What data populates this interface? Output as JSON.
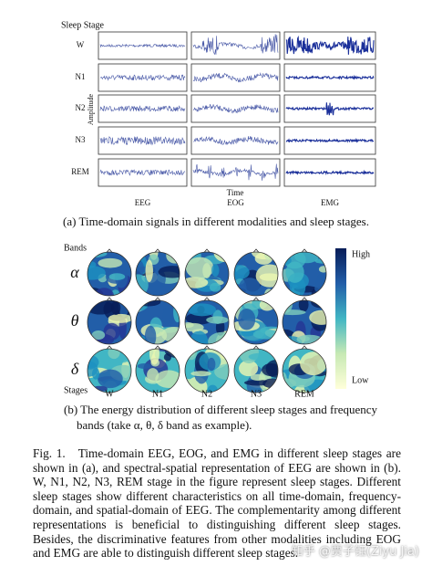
{
  "panel_a": {
    "title": "Sleep Stage",
    "stages": [
      "W",
      "N1",
      "N2",
      "N3",
      "REM"
    ],
    "y_label": "Amplitude",
    "x_label": "Time",
    "modalities": [
      "EEG",
      "EOG",
      "EMG"
    ],
    "caption": "(a) Time-domain signals in different modalities and sleep stages."
  },
  "panel_b": {
    "bands_label": "Bands",
    "bands": [
      "α",
      "θ",
      "δ"
    ],
    "stages_label": "Stages",
    "stages": [
      "W",
      "N1",
      "N2",
      "N3",
      "REM"
    ],
    "colorbar": {
      "high": "High",
      "low": "Low"
    },
    "caption_line1": "(b) The energy distribution of different sleep stages and frequency",
    "caption_line2": "bands (take α, θ, δ band as example)."
  },
  "figure_caption": {
    "label": "Fig. 1.",
    "text": "Time-domain EEG, EOG, and EMG in different sleep stages are shown in (a), and spectral-spatial representation of EEG are shown in (b). W, N1, N2, N3, REM stage in the figure represent sleep stages. Different sleep stages show different characteristics on all time-domain, frequency-domain, and spatial-domain of EEG. The complementarity among different representations is beneficial to distinguishing different sleep stages. Besides, the discriminative features from other modalities including EOG and EMG are able to distinguish different sleep stages."
  },
  "watermark": "知乎 @贾子钰(Ziyu Jia)"
}
